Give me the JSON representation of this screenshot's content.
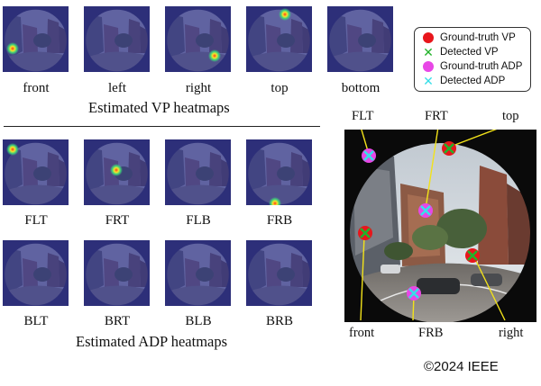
{
  "vp_section": {
    "thumbnails": [
      {
        "label": "front"
      },
      {
        "label": "left"
      },
      {
        "label": "right"
      },
      {
        "label": "top"
      },
      {
        "label": "bottom"
      }
    ],
    "caption": "Estimated VP heatmaps"
  },
  "adp_section": {
    "row1": [
      {
        "label": "FLT"
      },
      {
        "label": "FRT"
      },
      {
        "label": "FLB"
      },
      {
        "label": "FRB"
      }
    ],
    "row2": [
      {
        "label": "BLT"
      },
      {
        "label": "BRT"
      },
      {
        "label": "BLB"
      },
      {
        "label": "BRB"
      }
    ],
    "caption": "Estimated ADP heatmaps"
  },
  "legend": {
    "items": [
      {
        "label": "Ground-truth VP",
        "symbol": "dot",
        "color": "#e8161c"
      },
      {
        "label": "Detected VP",
        "symbol": "x",
        "color": "#22b22a"
      },
      {
        "label": "Ground-truth ADP",
        "symbol": "dot",
        "color": "#e847e6"
      },
      {
        "label": "Detected ADP",
        "symbol": "x",
        "color": "#38dfe8"
      }
    ]
  },
  "fisheye": {
    "labels": {
      "flt": "FLT",
      "frt": "FRT",
      "top": "top",
      "front": "front",
      "frb": "FRB",
      "right": "right"
    },
    "callout_color": "#f2e21a"
  },
  "copyright": "©2024 IEEE",
  "colors": {
    "heatmap_tint": "#3a3c9a",
    "heat_hot": "#ff3a1a",
    "heat_warm": "#f5e62a",
    "heat_mid": "#3fd17a"
  }
}
